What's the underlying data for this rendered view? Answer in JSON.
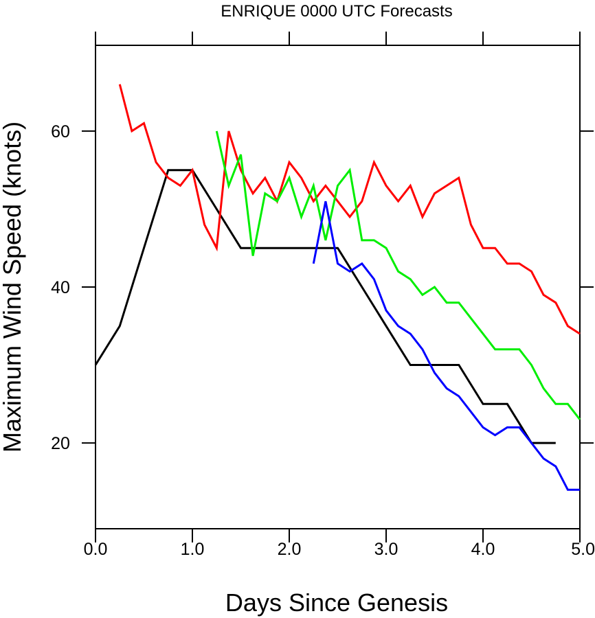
{
  "chart_data": {
    "type": "line",
    "title": "ENRIQUE 0000 UTC Forecasts",
    "xlabel": "Days Since Genesis",
    "ylabel": "Maximum Wind Speed (knots)",
    "xlim": [
      0,
      5
    ],
    "ylim": [
      9,
      71
    ],
    "xticks": [
      0,
      1,
      2,
      3,
      4,
      5
    ],
    "xtick_labels": [
      "0.0",
      "1.0",
      "2.0",
      "3.0",
      "4.0",
      "5.0"
    ],
    "yticks": [
      20,
      40,
      60
    ],
    "ytick_labels": [
      "20",
      "40",
      "60"
    ],
    "grid": false,
    "legend": "none",
    "series": [
      {
        "color": "#000000",
        "x": [
          0,
          0.25,
          0.5,
          0.75,
          1.0,
          1.25,
          1.5,
          1.75,
          2.0,
          2.25,
          2.5,
          2.75,
          3.0,
          3.25,
          3.5,
          3.75,
          4.0,
          4.25,
          4.5,
          4.75
        ],
        "y": [
          30,
          35,
          45,
          55,
          55,
          50,
          45,
          45,
          45,
          45,
          45,
          40,
          35,
          30,
          30,
          30,
          25,
          25,
          20,
          20
        ]
      },
      {
        "color": "#ff0000",
        "x": [
          0.25,
          0.375,
          0.5,
          0.625,
          0.75,
          0.875,
          1.0,
          1.125,
          1.25,
          1.375,
          1.5,
          1.625,
          1.75,
          1.875,
          2.0,
          2.125,
          2.25,
          2.375,
          2.5,
          2.625,
          2.75,
          2.875,
          3.0,
          3.125,
          3.25,
          3.375,
          3.5,
          3.625,
          3.75,
          3.875,
          4.0,
          4.125,
          4.25,
          4.375,
          4.5,
          4.625,
          4.75,
          4.875,
          5.0
        ],
        "y": [
          66,
          60,
          61,
          56,
          54,
          53,
          55,
          48,
          45,
          60,
          55,
          52,
          54,
          51,
          56,
          54,
          51,
          53,
          51,
          49,
          51,
          56,
          53,
          51,
          53,
          49,
          52,
          53,
          54,
          48,
          45,
          45,
          43,
          43,
          42,
          39,
          38,
          35,
          34
        ]
      },
      {
        "color": "#00ee00",
        "x": [
          1.25,
          1.375,
          1.5,
          1.625,
          1.75,
          1.875,
          2.0,
          2.125,
          2.25,
          2.375,
          2.5,
          2.625,
          2.75,
          2.875,
          3.0,
          3.125,
          3.25,
          3.375,
          3.5,
          3.625,
          3.75,
          3.875,
          4.0,
          4.125,
          4.25,
          4.375,
          4.5,
          4.625,
          4.75,
          4.875,
          5.0
        ],
        "y": [
          60,
          53,
          57,
          44,
          52,
          51,
          54,
          49,
          53,
          46,
          53,
          55,
          46,
          46,
          45,
          42,
          41,
          39,
          40,
          38,
          38,
          36,
          34,
          32,
          32,
          32,
          30,
          27,
          25,
          25,
          23
        ]
      },
      {
        "color": "#0000ff",
        "x": [
          2.25,
          2.375,
          2.5,
          2.625,
          2.75,
          2.875,
          3.0,
          3.125,
          3.25,
          3.375,
          3.5,
          3.625,
          3.75,
          3.875,
          4.0,
          4.125,
          4.25,
          4.375,
          4.5,
          4.625,
          4.75,
          4.875,
          5.0
        ],
        "y": [
          43,
          51,
          43,
          42,
          43,
          41,
          37,
          35,
          34,
          32,
          29,
          27,
          26,
          24,
          22,
          21,
          22,
          22,
          20,
          18,
          17,
          14,
          14
        ]
      }
    ]
  }
}
